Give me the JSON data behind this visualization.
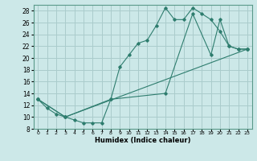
{
  "xlabel": "Humidex (Indice chaleur)",
  "xlim": [
    -0.5,
    23.5
  ],
  "ylim": [
    8,
    29
  ],
  "xticks": [
    0,
    1,
    2,
    3,
    4,
    5,
    6,
    7,
    8,
    9,
    10,
    11,
    12,
    13,
    14,
    15,
    16,
    17,
    18,
    19,
    20,
    21,
    22,
    23
  ],
  "yticks": [
    8,
    10,
    12,
    14,
    16,
    18,
    20,
    22,
    24,
    26,
    28
  ],
  "bg_color": "#cce8e8",
  "grid_color": "#aacccc",
  "line_color": "#2e7d6e",
  "line1_x": [
    0,
    1,
    2,
    3,
    4,
    5,
    6,
    7,
    8,
    9,
    10,
    11,
    12,
    13,
    14,
    15,
    16,
    17,
    18,
    19,
    20,
    21,
    22,
    23
  ],
  "line1_y": [
    13,
    11.5,
    10.5,
    10,
    9.5,
    9,
    9,
    9,
    13,
    18.5,
    20.5,
    22.5,
    23,
    25.5,
    28.5,
    26.5,
    26.5,
    28.5,
    27.5,
    26.5,
    24.5,
    22,
    21.5,
    21.5
  ],
  "line2_x": [
    0,
    3,
    8,
    14,
    17,
    19,
    20,
    21,
    22,
    23
  ],
  "line2_y": [
    13,
    10,
    13,
    14,
    27.5,
    20.5,
    26.5,
    22,
    21.5,
    21.5
  ],
  "line3_x": [
    0,
    3,
    23
  ],
  "line3_y": [
    13,
    10,
    21.5
  ]
}
